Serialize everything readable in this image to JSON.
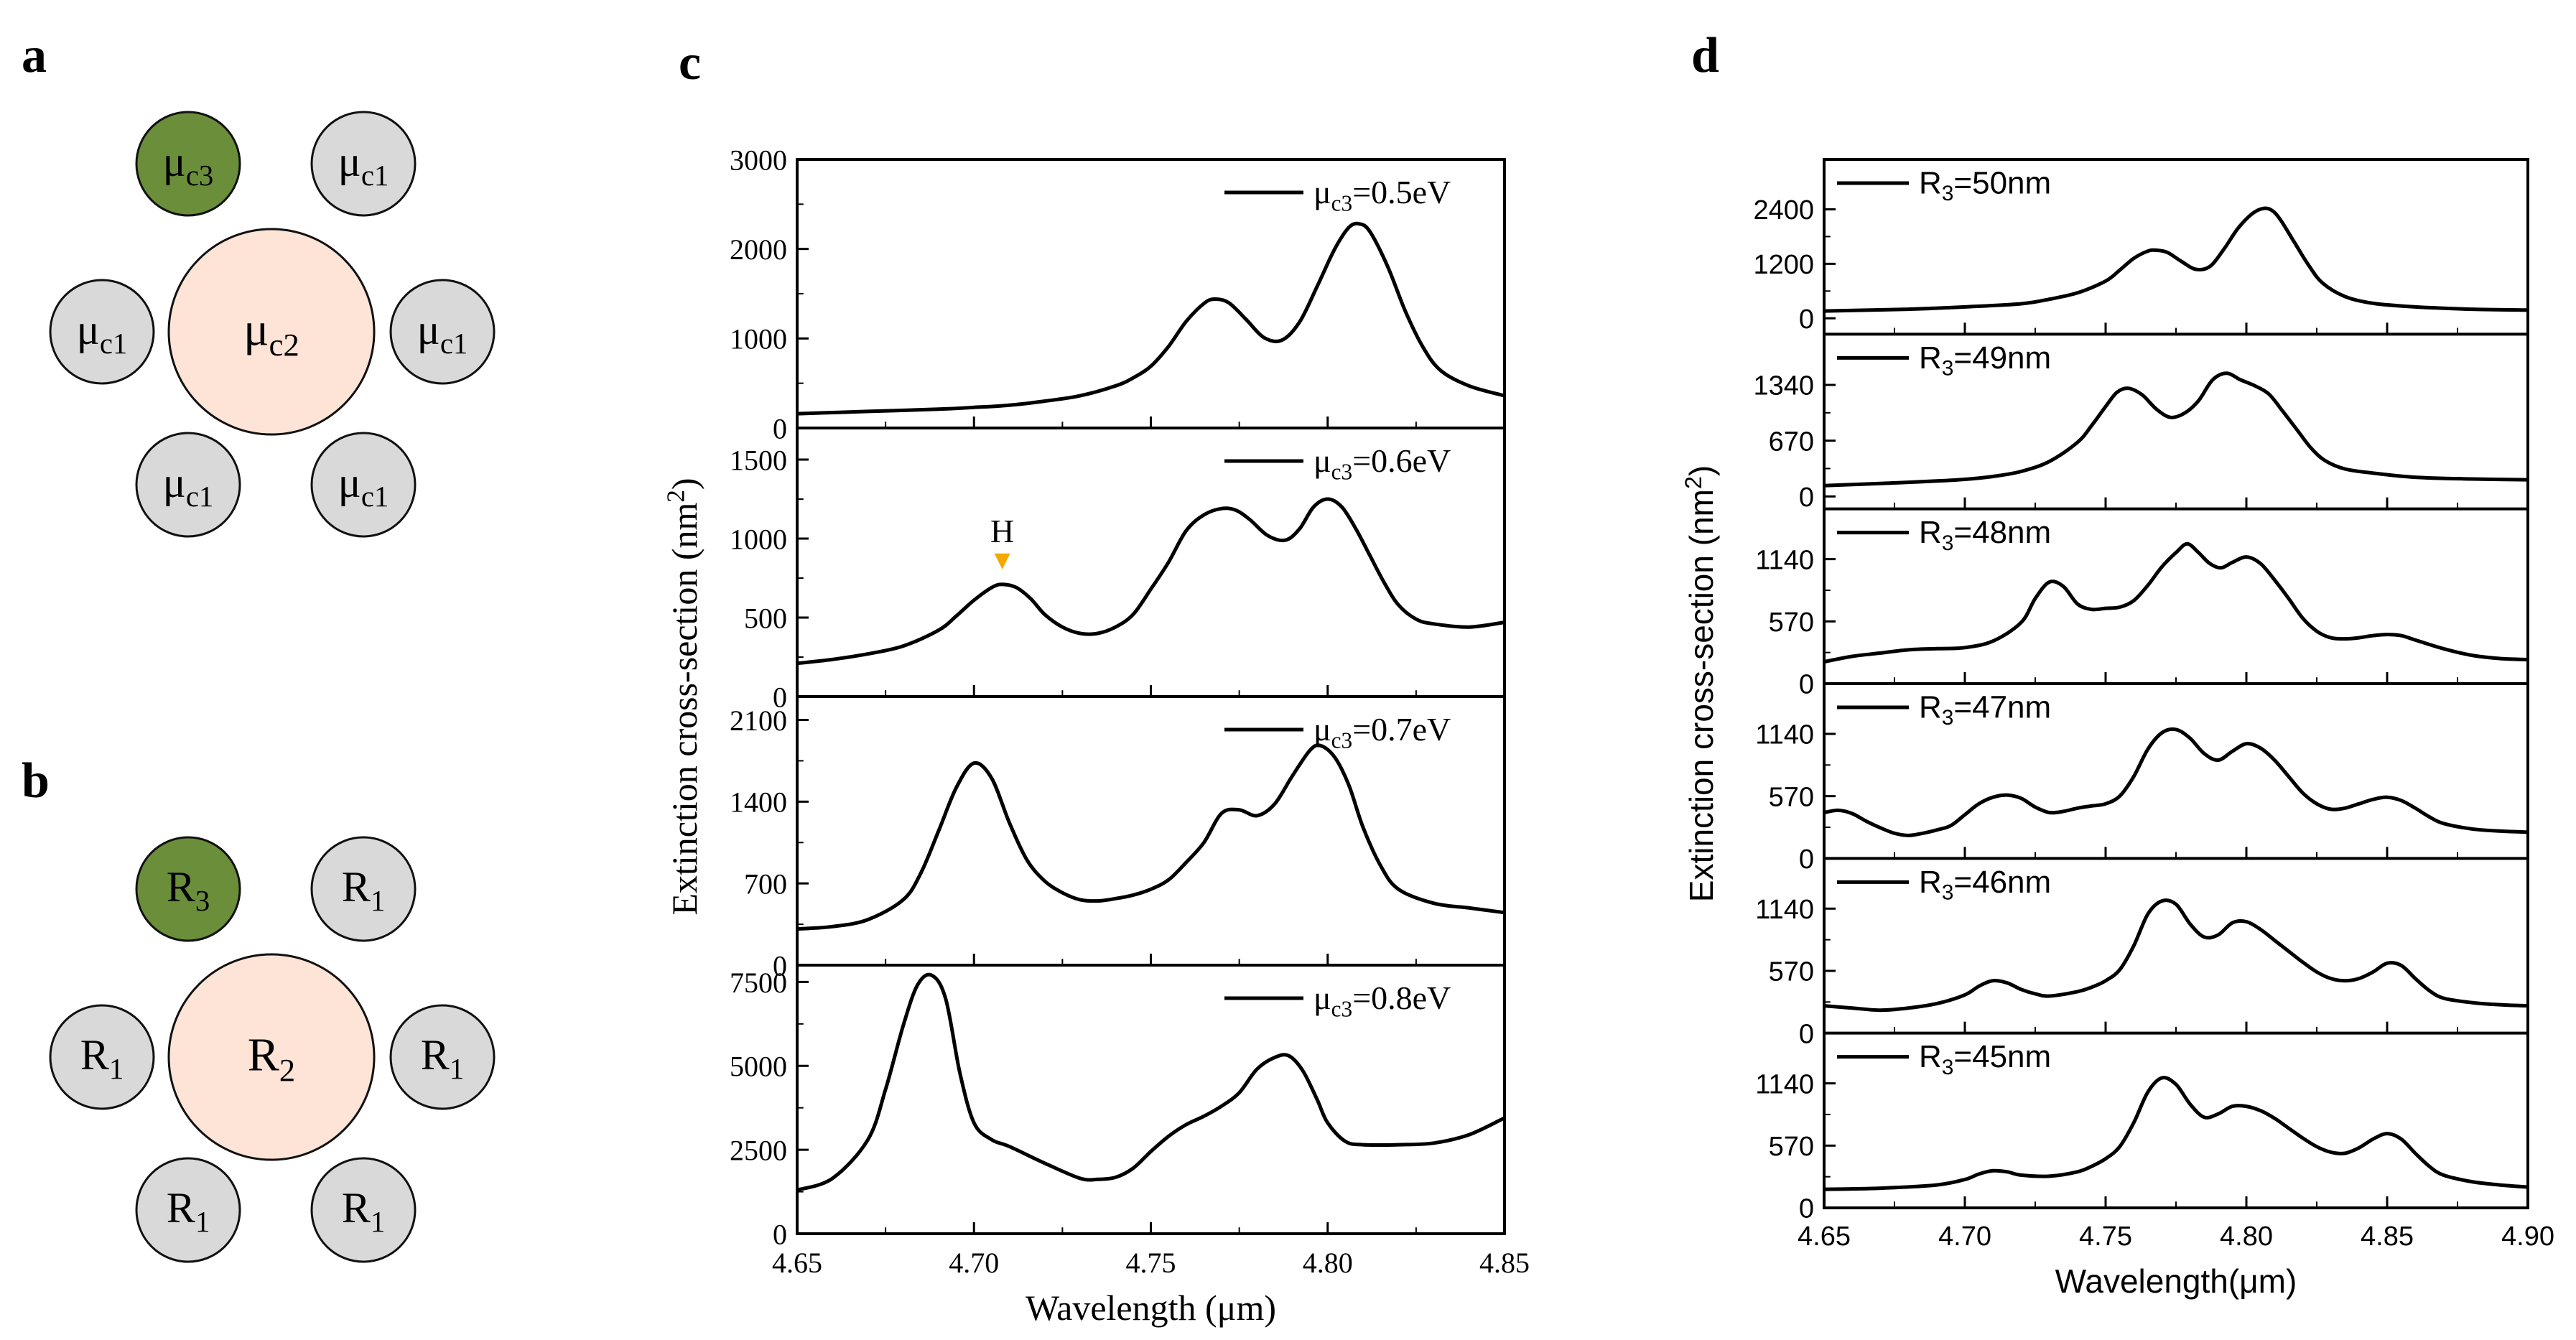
{
  "panels": {
    "a": {
      "label": "a",
      "circles": [
        {
          "role": "corner",
          "base": "μ",
          "sub": "c3",
          "fill": "#6b8e3a"
        },
        {
          "role": "corner",
          "base": "μ",
          "sub": "c1",
          "fill": "#d9d9d9"
        },
        {
          "role": "side",
          "base": "μ",
          "sub": "c1",
          "fill": "#d9d9d9"
        },
        {
          "role": "center",
          "base": "μ",
          "sub": "c2",
          "fill": "#fde4d6"
        },
        {
          "role": "side",
          "base": "μ",
          "sub": "c1",
          "fill": "#d9d9d9"
        },
        {
          "role": "corner",
          "base": "μ",
          "sub": "c1",
          "fill": "#d9d9d9"
        },
        {
          "role": "corner",
          "base": "μ",
          "sub": "c1",
          "fill": "#d9d9d9"
        }
      ]
    },
    "b": {
      "label": "b",
      "circles": [
        {
          "role": "corner",
          "base": "R",
          "sub": "3",
          "fill": "#6b8e3a"
        },
        {
          "role": "corner",
          "base": "R",
          "sub": "1",
          "fill": "#d9d9d9"
        },
        {
          "role": "side",
          "base": "R",
          "sub": "1",
          "fill": "#d9d9d9"
        },
        {
          "role": "center",
          "base": "R",
          "sub": "2",
          "fill": "#fde4d6"
        },
        {
          "role": "side",
          "base": "R",
          "sub": "1",
          "fill": "#d9d9d9"
        },
        {
          "role": "corner",
          "base": "R",
          "sub": "1",
          "fill": "#d9d9d9"
        },
        {
          "role": "corner",
          "base": "R",
          "sub": "1",
          "fill": "#d9d9d9"
        }
      ]
    }
  },
  "chart_data": [
    {
      "panel": "c",
      "type": "line",
      "xlabel": "Wavelength (μm)",
      "ylabel": "Extinction cross-section (nm2)",
      "ylabel_base": "Extinction cross-section (nm",
      "ylabel_sup": "2",
      "ylabel_close": ")",
      "xlim": [
        4.65,
        4.85
      ],
      "xticks": [
        "4.65",
        "4.70",
        "4.75",
        "4.80",
        "4.85"
      ],
      "marker_color": "#f2a900",
      "subplots": [
        {
          "legend_base": "μ",
          "legend_sub": "c3",
          "legend_rest": "=0.5eV",
          "ylim": [
            0,
            3000
          ],
          "yticks": [
            "0",
            "1000",
            "2000",
            "3000"
          ],
          "x": [
            4.65,
            4.67,
            4.69,
            4.7,
            4.71,
            4.72,
            4.73,
            4.74,
            4.745,
            4.75,
            4.755,
            4.76,
            4.765,
            4.768,
            4.772,
            4.777,
            4.782,
            4.787,
            4.792,
            4.797,
            4.802,
            4.806,
            4.809,
            4.812,
            4.817,
            4.822,
            4.827,
            4.832,
            4.84,
            4.85
          ],
          "y": [
            160,
            185,
            210,
            230,
            255,
            300,
            360,
            470,
            560,
            690,
            910,
            1190,
            1390,
            1440,
            1400,
            1210,
            1010,
            980,
            1180,
            1580,
            2000,
            2240,
            2280,
            2190,
            1800,
            1300,
            900,
            640,
            470,
            360
          ]
        },
        {
          "legend_base": "μ",
          "legend_sub": "c3",
          "legend_rest": "=0.6eV",
          "annotation": "H",
          "annotation_x": 4.708,
          "annotation_y": 760,
          "ylim": [
            0,
            1700
          ],
          "yticks": [
            "0",
            "500",
            "1000",
            "1500"
          ],
          "x": [
            4.65,
            4.66,
            4.67,
            4.68,
            4.69,
            4.695,
            4.7,
            4.705,
            4.708,
            4.712,
            4.716,
            4.72,
            4.725,
            4.73,
            4.735,
            4.74,
            4.745,
            4.75,
            4.755,
            4.76,
            4.765,
            4.77,
            4.774,
            4.778,
            4.783,
            4.788,
            4.792,
            4.796,
            4.8,
            4.804,
            4.808,
            4.812,
            4.816,
            4.82,
            4.825,
            4.83,
            4.84,
            4.85
          ],
          "y": [
            210,
            235,
            270,
            320,
            420,
            510,
            610,
            690,
            710,
            690,
            620,
            520,
            440,
            400,
            400,
            440,
            520,
            680,
            850,
            1050,
            1150,
            1190,
            1180,
            1120,
            1020,
            990,
            1060,
            1200,
            1250,
            1200,
            1060,
            890,
            720,
            580,
            490,
            460,
            440,
            470
          ]
        },
        {
          "legend_base": "μ",
          "legend_sub": "c3",
          "legend_rest": "=0.7eV",
          "ylim": [
            0,
            2300
          ],
          "yticks": [
            "0",
            "700",
            "1400",
            "2100"
          ],
          "x": [
            4.65,
            4.66,
            4.67,
            4.68,
            4.685,
            4.69,
            4.695,
            4.7,
            4.705,
            4.71,
            4.715,
            4.72,
            4.725,
            4.73,
            4.735,
            4.74,
            4.745,
            4.75,
            4.755,
            4.76,
            4.765,
            4.77,
            4.775,
            4.78,
            4.785,
            4.79,
            4.795,
            4.798,
            4.802,
            4.806,
            4.81,
            4.815,
            4.82,
            4.83,
            4.84,
            4.85
          ],
          "y": [
            310,
            330,
            390,
            560,
            790,
            1150,
            1520,
            1730,
            1600,
            1220,
            900,
            720,
            620,
            560,
            550,
            570,
            600,
            650,
            730,
            880,
            1050,
            1300,
            1330,
            1280,
            1380,
            1620,
            1840,
            1880,
            1780,
            1540,
            1180,
            850,
            650,
            530,
            490,
            450
          ]
        },
        {
          "legend_base": "μ",
          "legend_sub": "c3",
          "legend_rest": "=0.8eV",
          "ylim": [
            0,
            8000
          ],
          "yticks": [
            "0",
            "2500",
            "5000",
            "7500"
          ],
          "x": [
            4.65,
            4.66,
            4.67,
            4.675,
            4.68,
            4.684,
            4.688,
            4.692,
            4.696,
            4.7,
            4.705,
            4.71,
            4.72,
            4.73,
            4.735,
            4.74,
            4.745,
            4.75,
            4.755,
            4.76,
            4.765,
            4.77,
            4.775,
            4.78,
            4.785,
            4.789,
            4.793,
            4.797,
            4.8,
            4.805,
            4.81,
            4.82,
            4.83,
            4.84,
            4.85
          ],
          "y": [
            1300,
            1650,
            2800,
            4300,
            6200,
            7400,
            7700,
            7000,
            4800,
            3300,
            2800,
            2600,
            2100,
            1650,
            1620,
            1680,
            1950,
            2450,
            2900,
            3250,
            3500,
            3800,
            4200,
            4900,
            5250,
            5300,
            4850,
            4000,
            3300,
            2750,
            2650,
            2650,
            2700,
            2950,
            3450
          ]
        }
      ]
    },
    {
      "panel": "d",
      "type": "line",
      "xlabel": "Wavelength(μm)",
      "ylabel": "Extinction cross-section (nm2)",
      "ylabel_base": "Extinction cross-section (nm",
      "ylabel_sup": "2",
      "ylabel_close": ")",
      "xlim": [
        4.65,
        4.9
      ],
      "xticks": [
        "4.65",
        "4.70",
        "4.75",
        "4.80",
        "4.85",
        "4.90"
      ],
      "subplots": [
        {
          "legend_base": "R",
          "legend_sub": "3",
          "legend_rest": "=50nm",
          "ylim": [
            -350,
            3500
          ],
          "yticks": [
            "0",
            "1200",
            "2400"
          ],
          "x": [
            4.65,
            4.68,
            4.7,
            4.72,
            4.73,
            4.74,
            4.75,
            4.755,
            4.76,
            4.765,
            4.768,
            4.772,
            4.777,
            4.782,
            4.787,
            4.792,
            4.797,
            4.802,
            4.806,
            4.809,
            4.812,
            4.817,
            4.822,
            4.827,
            4.835,
            4.845,
            4.86,
            4.88,
            4.9
          ],
          "y": [
            160,
            200,
            250,
            320,
            420,
            560,
            820,
            1060,
            1320,
            1480,
            1500,
            1450,
            1250,
            1080,
            1140,
            1520,
            1980,
            2300,
            2420,
            2380,
            2180,
            1680,
            1180,
            780,
            480,
            330,
            250,
            200,
            180
          ]
        },
        {
          "legend_base": "R",
          "legend_sub": "3",
          "legend_rest": "=49nm",
          "ylim": [
            -150,
            1950
          ],
          "yticks": [
            "0",
            "670",
            "1340"
          ],
          "x": [
            4.65,
            4.67,
            4.69,
            4.7,
            4.71,
            4.72,
            4.73,
            4.74,
            4.745,
            4.75,
            4.754,
            4.758,
            4.763,
            4.768,
            4.773,
            4.778,
            4.783,
            4.788,
            4.793,
            4.798,
            4.803,
            4.808,
            4.813,
            4.818,
            4.823,
            4.828,
            4.835,
            4.845,
            4.86,
            4.88,
            4.9
          ],
          "y": [
            130,
            155,
            185,
            205,
            240,
            300,
            420,
            650,
            850,
            1080,
            1250,
            1300,
            1220,
            1050,
            950,
            1000,
            1150,
            1400,
            1480,
            1400,
            1330,
            1230,
            1020,
            800,
            580,
            430,
            330,
            280,
            230,
            210,
            200
          ]
        },
        {
          "legend_base": "R",
          "legend_sub": "3",
          "legend_rest": "=48nm",
          "ylim": [
            0,
            1600
          ],
          "yticks": [
            "0",
            "570",
            "1140"
          ],
          "x": [
            4.65,
            4.66,
            4.67,
            4.68,
            4.69,
            4.7,
            4.71,
            4.72,
            4.725,
            4.73,
            4.735,
            4.74,
            4.745,
            4.75,
            4.755,
            4.76,
            4.765,
            4.77,
            4.775,
            4.779,
            4.783,
            4.787,
            4.791,
            4.795,
            4.8,
            4.805,
            4.81,
            4.815,
            4.82,
            4.825,
            4.83,
            4.835,
            4.84,
            4.845,
            4.85,
            4.855,
            4.86,
            4.87,
            4.88,
            4.89,
            4.9
          ],
          "y": [
            200,
            250,
            280,
            310,
            320,
            330,
            390,
            560,
            780,
            930,
            890,
            730,
            680,
            690,
            700,
            760,
            900,
            1070,
            1200,
            1280,
            1200,
            1100,
            1060,
            1110,
            1160,
            1100,
            950,
            780,
            600,
            480,
            420,
            410,
            420,
            440,
            450,
            440,
            400,
            320,
            260,
            230,
            220
          ]
        },
        {
          "legend_base": "R",
          "legend_sub": "3",
          "legend_rest": "=47nm",
          "ylim": [
            0,
            1600
          ],
          "yticks": [
            "0",
            "570",
            "1140"
          ],
          "x": [
            4.65,
            4.655,
            4.66,
            4.665,
            4.67,
            4.675,
            4.68,
            4.685,
            4.69,
            4.695,
            4.7,
            4.705,
            4.71,
            4.715,
            4.72,
            4.725,
            4.73,
            4.735,
            4.74,
            4.745,
            4.75,
            4.755,
            4.76,
            4.765,
            4.77,
            4.775,
            4.78,
            4.785,
            4.79,
            4.795,
            4.8,
            4.805,
            4.81,
            4.815,
            4.82,
            4.825,
            4.83,
            4.835,
            4.84,
            4.845,
            4.85,
            4.855,
            4.86,
            4.865,
            4.87,
            4.88,
            4.89,
            4.9
          ],
          "y": [
            420,
            440,
            410,
            340,
            280,
            230,
            210,
            230,
            260,
            300,
            400,
            500,
            560,
            580,
            550,
            470,
            420,
            430,
            460,
            480,
            500,
            570,
            750,
            1000,
            1150,
            1180,
            1100,
            960,
            900,
            980,
            1050,
            1010,
            900,
            750,
            600,
            500,
            450,
            460,
            500,
            540,
            560,
            530,
            460,
            380,
            320,
            270,
            250,
            240
          ]
        },
        {
          "legend_base": "R",
          "legend_sub": "3",
          "legend_rest": "=46nm",
          "ylim": [
            0,
            1600
          ],
          "yticks": [
            "0",
            "570",
            "1140"
          ],
          "x": [
            4.65,
            4.66,
            4.67,
            4.68,
            4.69,
            4.7,
            4.705,
            4.71,
            4.715,
            4.72,
            4.725,
            4.73,
            4.74,
            4.745,
            4.75,
            4.755,
            4.76,
            4.765,
            4.77,
            4.775,
            4.78,
            4.785,
            4.79,
            4.795,
            4.8,
            4.805,
            4.81,
            4.815,
            4.82,
            4.825,
            4.83,
            4.835,
            4.84,
            4.845,
            4.85,
            4.855,
            4.86,
            4.865,
            4.87,
            4.88,
            4.89,
            4.9
          ],
          "y": [
            250,
            230,
            210,
            230,
            270,
            350,
            430,
            480,
            460,
            400,
            360,
            340,
            380,
            420,
            480,
            580,
            800,
            1090,
            1210,
            1180,
            1000,
            880,
            900,
            1010,
            1020,
            950,
            850,
            750,
            650,
            560,
            500,
            480,
            500,
            560,
            640,
            620,
            500,
            390,
            320,
            280,
            260,
            250
          ]
        },
        {
          "legend_base": "R",
          "legend_sub": "3",
          "legend_rest": "=45nm",
          "ylim": [
            0,
            1600
          ],
          "yticks": [
            "0",
            "570",
            "1140"
          ],
          "x": [
            4.65,
            4.67,
            4.69,
            4.7,
            4.705,
            4.71,
            4.715,
            4.72,
            4.73,
            4.74,
            4.745,
            4.75,
            4.755,
            4.76,
            4.765,
            4.77,
            4.775,
            4.78,
            4.785,
            4.79,
            4.795,
            4.8,
            4.805,
            4.81,
            4.815,
            4.82,
            4.825,
            4.83,
            4.835,
            4.84,
            4.845,
            4.85,
            4.855,
            4.86,
            4.865,
            4.87,
            4.88,
            4.89,
            4.9
          ],
          "y": [
            170,
            180,
            210,
            260,
            310,
            340,
            330,
            300,
            290,
            330,
            380,
            450,
            560,
            780,
            1060,
            1190,
            1130,
            950,
            830,
            860,
            930,
            930,
            890,
            820,
            730,
            640,
            560,
            510,
            500,
            550,
            630,
            680,
            630,
            500,
            380,
            300,
            240,
            210,
            190
          ]
        }
      ]
    }
  ]
}
